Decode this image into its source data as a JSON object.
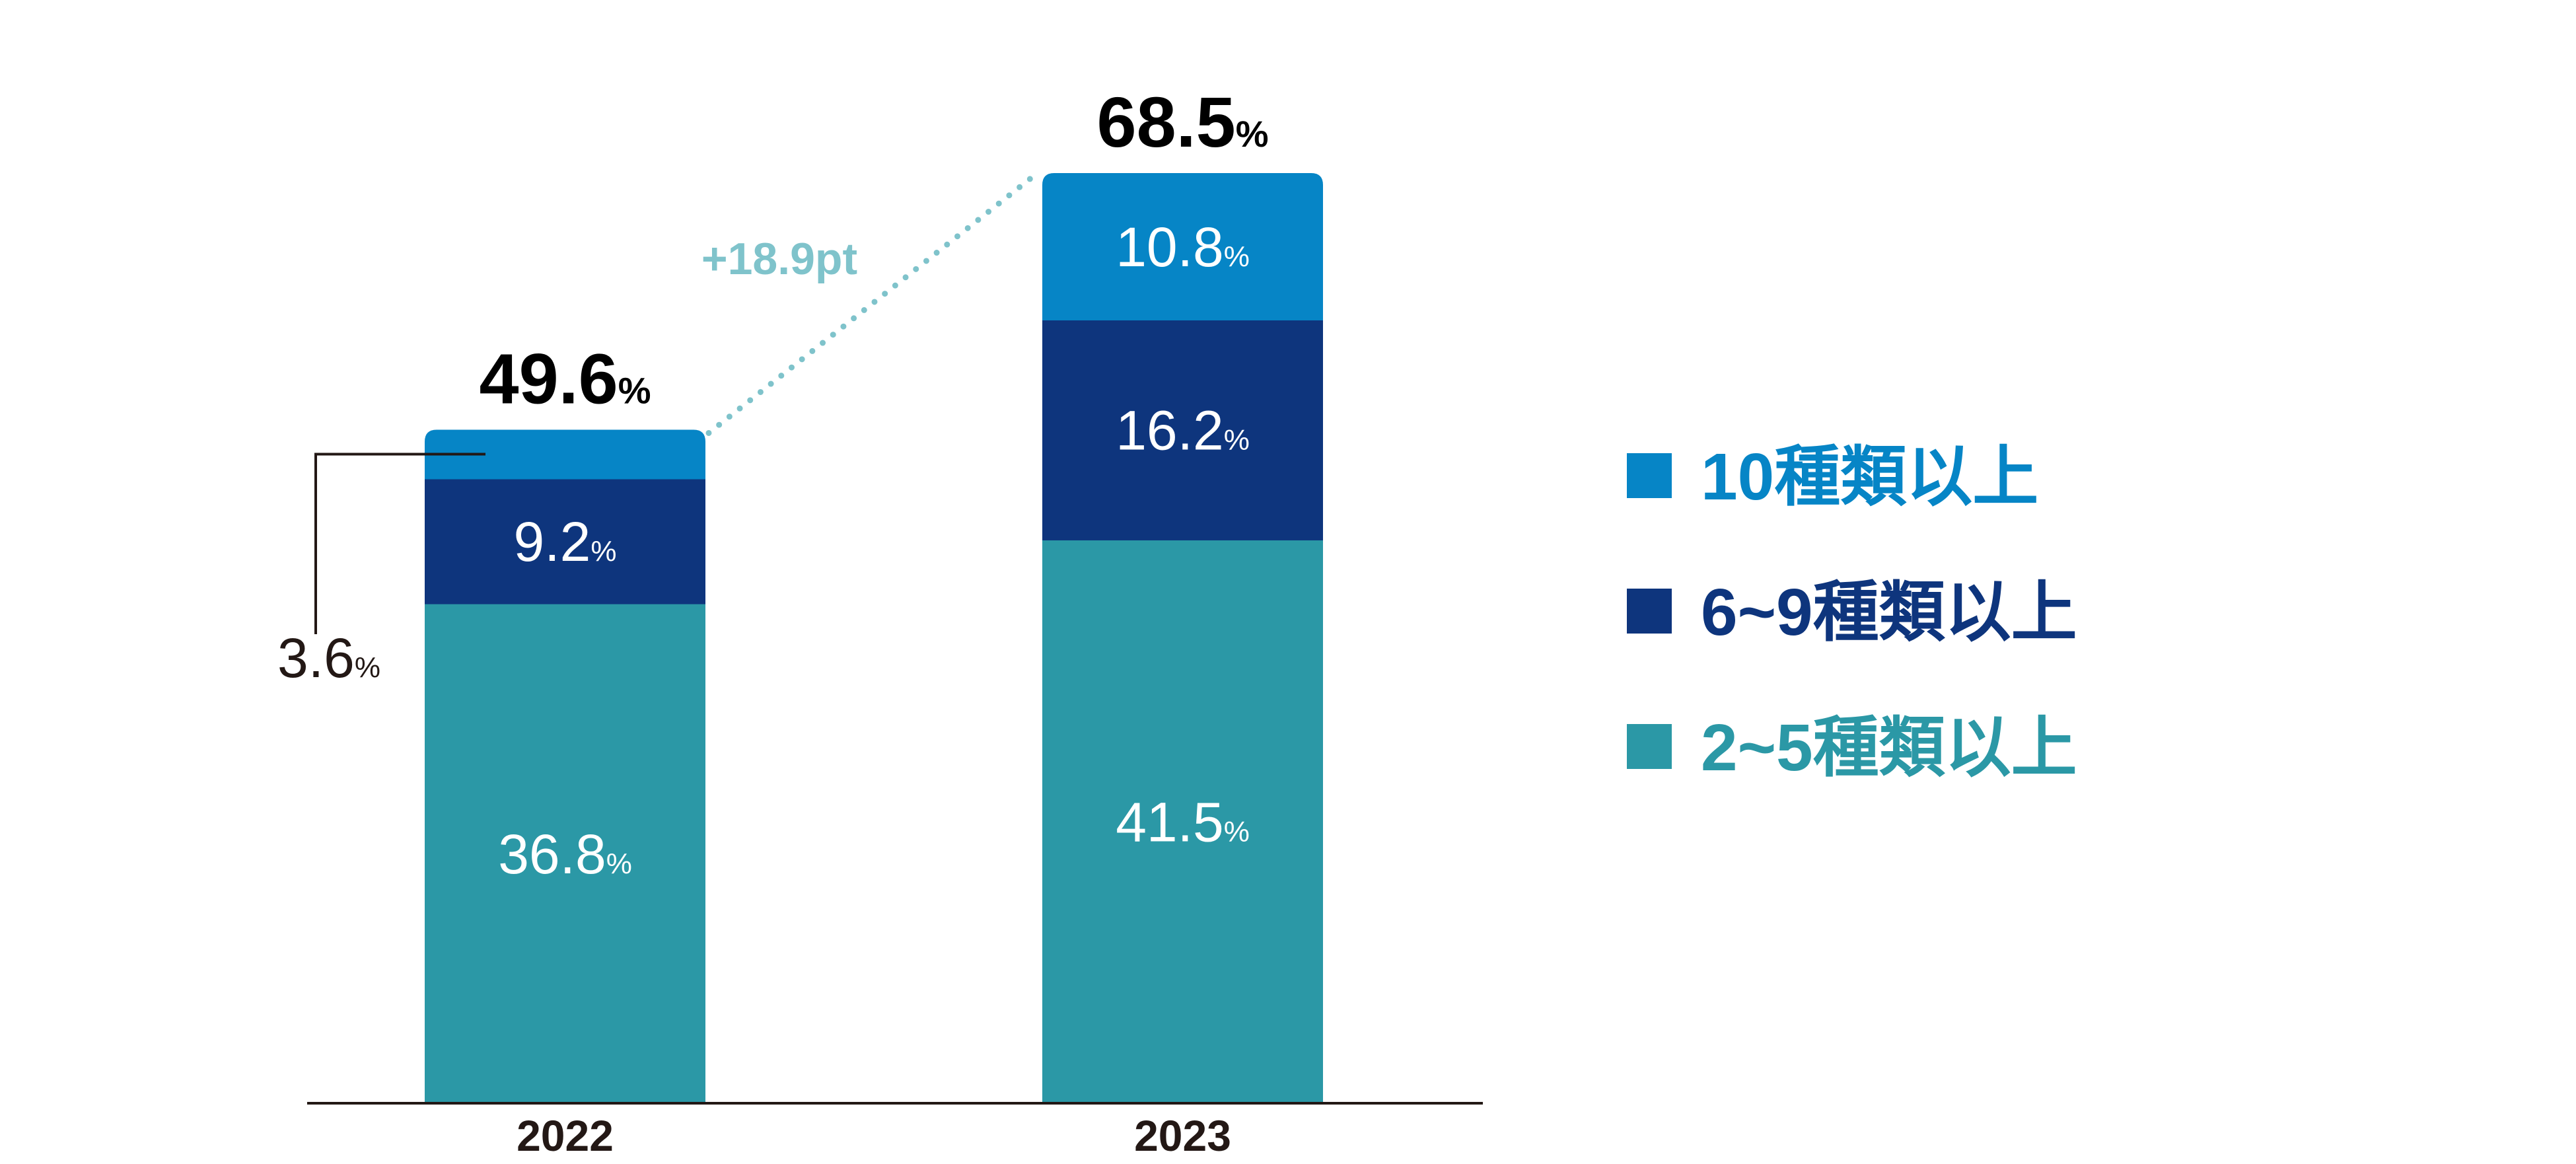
{
  "colors": {
    "ten_plus": "#0685C6",
    "six_to_nine": "#0E357D",
    "two_to_five": "#2B98A6",
    "delta": "#7FC3CB",
    "text_dark": "#231815",
    "white": "#FFFFFF"
  },
  "chart_data": {
    "type": "bar",
    "stacked": true,
    "categories": [
      "2022",
      "2023"
    ],
    "ylim": [
      0,
      70
    ],
    "series": [
      {
        "name": "2~5種類以上",
        "values": [
          36.8,
          41.5
        ],
        "labels": [
          "36.8",
          "41.5"
        ]
      },
      {
        "name": "6~9種類以上",
        "values": [
          9.2,
          16.2
        ],
        "labels": [
          "9.2",
          "16.2"
        ]
      },
      {
        "name": "10種類以上",
        "values": [
          3.6,
          10.8
        ],
        "labels": [
          "3.6",
          "10.8"
        ]
      }
    ],
    "totals": {
      "values": [
        49.6,
        68.5
      ],
      "labels": [
        "49.6",
        "68.5"
      ]
    },
    "change_label": "+18.9pt",
    "unit": "%",
    "legend": {
      "position": "right",
      "order": [
        "10種類以上",
        "6~9種類以上",
        "2~5種類以上"
      ]
    }
  }
}
